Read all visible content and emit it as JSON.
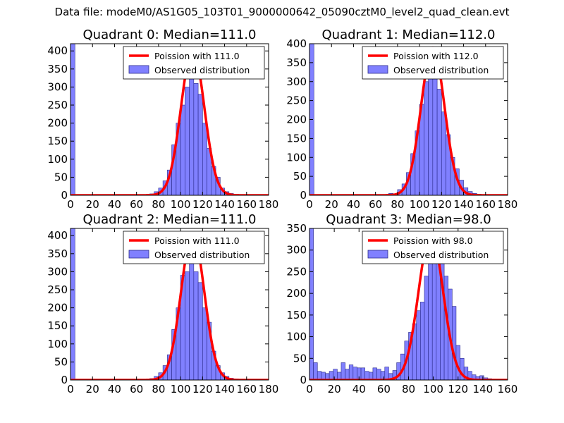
{
  "suptitle": "Data file: modeM0/AS1G05_103T01_9000000642_05090cztM0_level2_quad_clean.evt",
  "colors": {
    "bar_fill": "#8080ff",
    "bar_edge": "#2a2a8a",
    "line": "#ff0000"
  },
  "chart_data": [
    {
      "type": "bar",
      "title": "Quadrant 0: Median=111.0",
      "xlim": [
        0,
        180
      ],
      "ylim": [
        0,
        420
      ],
      "xticks": [
        0,
        20,
        40,
        60,
        80,
        100,
        120,
        140,
        160,
        180
      ],
      "yticks": [
        0,
        50,
        100,
        150,
        200,
        250,
        300,
        350,
        400
      ],
      "legend": [
        "Poission with 111.0",
        "Observed distribution"
      ],
      "bin_width": 4,
      "bin_starts": [
        0,
        68,
        72,
        76,
        80,
        84,
        88,
        92,
        96,
        100,
        104,
        108,
        112,
        116,
        120,
        124,
        128,
        132,
        136,
        140,
        144,
        148
      ],
      "values": [
        420,
        2,
        4,
        10,
        20,
        40,
        70,
        140,
        200,
        250,
        300,
        340,
        310,
        280,
        200,
        130,
        80,
        50,
        20,
        10,
        5,
        2
      ],
      "poisson_mean": 111.0,
      "poisson_peak": 405
    },
    {
      "type": "bar",
      "title": "Quadrant 1: Median=112.0",
      "xlim": [
        0,
        180
      ],
      "ylim": [
        0,
        400
      ],
      "xticks": [
        0,
        20,
        40,
        60,
        80,
        100,
        120,
        140,
        160,
        180
      ],
      "yticks": [
        0,
        50,
        100,
        150,
        200,
        250,
        300,
        350,
        400
      ],
      "legend": [
        "Poission with 112.0",
        "Observed distribution"
      ],
      "bin_width": 4,
      "bin_starts": [
        0,
        64,
        72,
        80,
        84,
        88,
        92,
        96,
        100,
        104,
        108,
        112,
        116,
        120,
        124,
        128,
        132,
        136,
        140,
        144,
        148,
        152,
        156
      ],
      "values": [
        400,
        2,
        5,
        15,
        30,
        60,
        110,
        170,
        240,
        300,
        350,
        340,
        280,
        220,
        160,
        100,
        70,
        40,
        20,
        10,
        5,
        3,
        2
      ],
      "poisson_mean": 112.0,
      "poisson_peak": 390
    },
    {
      "type": "bar",
      "title": "Quadrant 2: Median=111.0",
      "xlim": [
        0,
        180
      ],
      "ylim": [
        0,
        420
      ],
      "xticks": [
        0,
        20,
        40,
        60,
        80,
        100,
        120,
        140,
        160,
        180
      ],
      "yticks": [
        0,
        50,
        100,
        150,
        200,
        250,
        300,
        350,
        400
      ],
      "legend": [
        "Poission with 111.0",
        "Observed distribution"
      ],
      "bin_width": 4,
      "bin_starts": [
        0,
        68,
        72,
        76,
        80,
        84,
        88,
        92,
        96,
        100,
        104,
        108,
        112,
        116,
        120,
        124,
        128,
        132,
        136,
        140,
        144,
        148,
        152,
        156
      ],
      "values": [
        420,
        2,
        4,
        10,
        20,
        40,
        70,
        140,
        200,
        290,
        300,
        330,
        300,
        270,
        200,
        160,
        80,
        40,
        20,
        10,
        5,
        3,
        2,
        1
      ],
      "poisson_mean": 111.0,
      "poisson_peak": 405
    },
    {
      "type": "bar",
      "title": "Quadrant 3: Median=98.0",
      "xlim": [
        0,
        160
      ],
      "ylim": [
        0,
        350
      ],
      "xticks": [
        0,
        20,
        40,
        60,
        80,
        100,
        120,
        140,
        160
      ],
      "yticks": [
        0,
        50,
        100,
        150,
        200,
        250,
        300,
        350
      ],
      "legend": [
        "Poission with 98.0",
        "Observed distribution"
      ],
      "bin_width": 3.2,
      "bin_starts": [
        0,
        3.2,
        6.4,
        9.6,
        12.8,
        16,
        19.2,
        22.4,
        25.6,
        28.8,
        32,
        35.2,
        38.4,
        41.6,
        44.8,
        48,
        51.2,
        54.4,
        57.6,
        60.8,
        64,
        67.2,
        70.4,
        73.6,
        76.8,
        80,
        83.2,
        86.4,
        89.6,
        92.8,
        96,
        99.2,
        102.4,
        105.6,
        108.8,
        112,
        115.2,
        118.4,
        121.6,
        124.8,
        128,
        131.2,
        134.4,
        137.6,
        140.8,
        144,
        147.2
      ],
      "values": [
        350,
        40,
        20,
        18,
        15,
        20,
        25,
        18,
        40,
        25,
        35,
        30,
        28,
        28,
        20,
        18,
        28,
        25,
        20,
        30,
        15,
        22,
        40,
        60,
        90,
        110,
        130,
        160,
        180,
        240,
        320,
        270,
        290,
        300,
        240,
        210,
        170,
        80,
        50,
        30,
        20,
        12,
        8,
        10,
        5,
        3,
        2
      ],
      "poisson_mean": 98.0,
      "poisson_peak": 338
    }
  ]
}
